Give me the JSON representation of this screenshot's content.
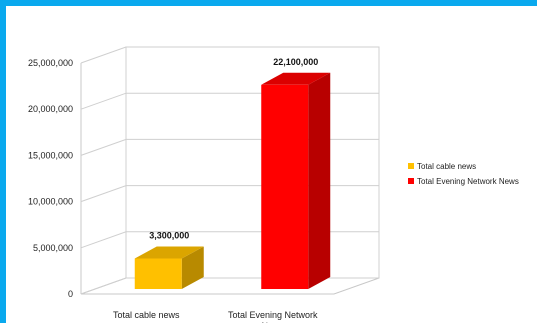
{
  "chart_data": {
    "type": "bar",
    "style": "3d",
    "categories": [
      "Total cable news",
      "Total Evening Network News"
    ],
    "category_labels": [
      "Total cable news",
      "Total Evening Network News"
    ],
    "values": [
      3300000,
      22100000
    ],
    "data_labels": [
      "3,300,000",
      "22,100,000"
    ],
    "colors": [
      "#ffc000",
      "#ff0000"
    ],
    "ylim": [
      0,
      25000000
    ],
    "yticks": [
      0,
      5000000,
      10000000,
      15000000,
      20000000,
      25000000
    ],
    "ytick_labels": [
      "0",
      "5,000,000",
      "10,000,000",
      "15,000,000",
      "20,000,000",
      "25,000,000"
    ],
    "grid": true,
    "legend_position": "right",
    "legend": [
      {
        "label": "Total cable news",
        "color": "#ffc000"
      },
      {
        "label": "Total Evening Network News",
        "color": "#ff0000"
      }
    ]
  }
}
